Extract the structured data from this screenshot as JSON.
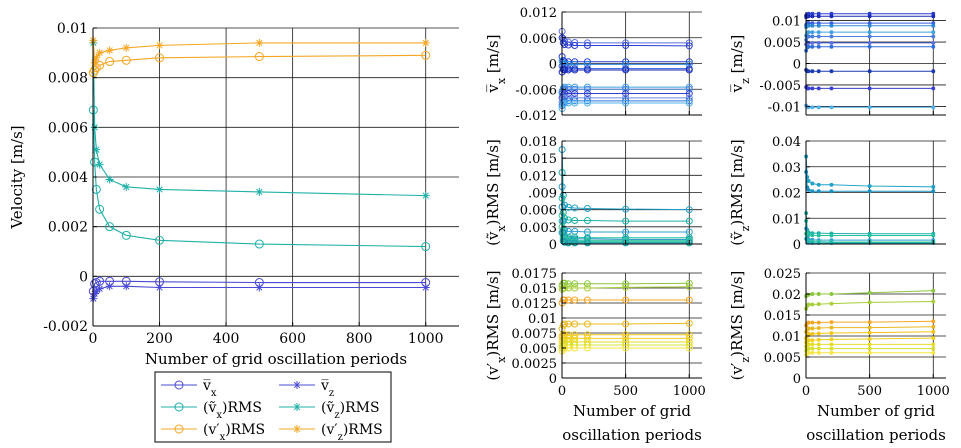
{
  "chart_data": [
    {
      "id": "main",
      "type": "line",
      "ylabel": "Velocity [m/s]",
      "xlabel": "Number of grid oscillation periods",
      "xlim": [
        0,
        1100
      ],
      "ylim": [
        -0.002,
        0.01
      ],
      "xticks": [
        0,
        200,
        400,
        600,
        800,
        1000
      ],
      "xtick_labels": [
        "0",
        "200",
        "400",
        "600",
        "800",
        "1000"
      ],
      "yticks": [
        -0.002,
        0,
        0.002,
        0.004,
        0.006,
        0.008,
        0.01
      ],
      "ytick_labels": [
        "-0.002",
        "0",
        "0.002",
        "0.004",
        "0.006",
        "0.008",
        "0.01"
      ],
      "grid": true,
      "legend_position": "below",
      "legend_columns": 2,
      "series": [
        {
          "name": "v̅ₓ",
          "name_main": "v̅",
          "name_sub": "x",
          "name_tail": "",
          "color": "#4a4ad6",
          "marker": "circle",
          "x": [
            1,
            5,
            10,
            20,
            50,
            100,
            200,
            500,
            1000
          ],
          "y": [
            -0.0006,
            -0.0003,
            -0.00025,
            -0.0002,
            -0.0002,
            -0.0002,
            -0.00022,
            -0.00025,
            -0.00025
          ]
        },
        {
          "name": "v̅_z",
          "name_main": "v̅",
          "name_sub": "z",
          "name_tail": "",
          "color": "#4a4ad6",
          "marker": "star",
          "x": [
            1,
            5,
            10,
            20,
            50,
            100,
            200,
            500,
            1000
          ],
          "y": [
            -0.0009,
            -0.0007,
            -0.0006,
            -0.0005,
            -0.0004,
            -0.0004,
            -0.00045,
            -0.00045,
            -0.00045
          ]
        },
        {
          "name": "(ṽₓ)RMS",
          "name_main": "(ṽ",
          "name_sub": "x",
          "name_tail": ")RMS",
          "color": "#1fb0a8",
          "marker": "circle",
          "x": [
            1,
            5,
            10,
            20,
            50,
            100,
            200,
            500,
            1000
          ],
          "y": [
            0.0067,
            0.0046,
            0.0035,
            0.0027,
            0.002,
            0.00165,
            0.00145,
            0.0013,
            0.0012
          ]
        },
        {
          "name": "(ṽ_z)RMS",
          "name_main": "(ṽ",
          "name_sub": "z",
          "name_tail": ")RMS",
          "color": "#1fb0a8",
          "marker": "star",
          "x": [
            1,
            5,
            10,
            20,
            50,
            100,
            200,
            500,
            1000
          ],
          "y": [
            0.0094,
            0.006,
            0.0051,
            0.0045,
            0.0039,
            0.0036,
            0.0035,
            0.0034,
            0.00325
          ]
        },
        {
          "name": "(v′ₓ)RMS",
          "name_main": "(v′",
          "name_sub": "x",
          "name_tail": ")RMS",
          "color": "#f5a623",
          "marker": "circle",
          "x": [
            1,
            5,
            10,
            20,
            50,
            100,
            200,
            500,
            1000
          ],
          "y": [
            0.0082,
            0.0083,
            0.0084,
            0.0085,
            0.00865,
            0.0087,
            0.0088,
            0.00885,
            0.0089
          ]
        },
        {
          "name": "(v′_z)RMS",
          "name_main": "(v′",
          "name_sub": "z",
          "name_tail": ")RMS",
          "color": "#f5a623",
          "marker": "star",
          "x": [
            1,
            5,
            10,
            20,
            50,
            100,
            200,
            500,
            1000
          ],
          "y": [
            0.0095,
            0.0086,
            0.0088,
            0.009,
            0.0091,
            0.0092,
            0.0093,
            0.0094,
            0.0094
          ]
        }
      ]
    },
    {
      "id": "vx_mean",
      "type": "line",
      "ylabel_main": "v̅",
      "ylabel_sub": "x",
      "ylabel_tail": " [m/s]",
      "xlim": [
        0,
        1100
      ],
      "ylim": [
        -0.012,
        0.012
      ],
      "yticks": [
        -0.012,
        -0.006,
        0,
        0.006,
        0.012
      ],
      "ytick_labels": [
        "-0.012",
        "-0.006",
        "0",
        "0.006",
        "0.012"
      ],
      "xticks": [
        0,
        500,
        1000
      ],
      "xtick_labels": [],
      "grid": true,
      "marker": "circle",
      "colors": [
        "#5b6fe0",
        "#2b3fd2",
        "#2b3fd2",
        "#2d8ad8",
        "#3a5fdc",
        "#1a2bb8",
        "#3fa0e0",
        "#4a7fe0",
        "#3a3fd0",
        "#6a8ae6",
        "#2f6fdc",
        "#4fb0ea"
      ],
      "x": [
        1,
        10,
        20,
        50,
        100,
        200,
        500,
        1000
      ],
      "series_y": [
        [
          0.0075,
          0.0058,
          0.0052,
          0.005,
          0.0049,
          0.0048,
          0.0048,
          0.0048
        ],
        [
          0.006,
          0.0048,
          0.0044,
          0.0043,
          0.0042,
          0.0042,
          0.0042,
          0.0041
        ],
        [
          0.0016,
          0.0007,
          0.0004,
          0.0004,
          0.0004,
          0.0004,
          0.0004,
          0.0004
        ],
        [
          0.0006,
          0.0,
          -0.0002,
          -0.0002,
          -0.0002,
          -0.0002,
          -0.0002,
          -0.0002
        ],
        [
          -0.0006,
          -0.001,
          -0.0012,
          -0.0012,
          -0.0012,
          -0.0012,
          -0.0012,
          -0.0012
        ],
        [
          -0.002,
          -0.0014,
          -0.0015,
          -0.0015,
          -0.0015,
          -0.0015,
          -0.0015,
          -0.0015
        ],
        [
          -0.007,
          -0.0058,
          -0.0055,
          -0.0055,
          -0.0055,
          -0.0055,
          -0.0055,
          -0.0055
        ],
        [
          -0.0065,
          -0.0062,
          -0.006,
          -0.006,
          -0.006,
          -0.006,
          -0.006,
          -0.006
        ],
        [
          -0.008,
          -0.0073,
          -0.007,
          -0.007,
          -0.007,
          -0.007,
          -0.007,
          -0.007
        ],
        [
          -0.009,
          -0.0082,
          -0.008,
          -0.008,
          -0.008,
          -0.008,
          -0.008,
          -0.008
        ],
        [
          -0.0098,
          -0.009,
          -0.0088,
          -0.0087,
          -0.0087,
          -0.0087,
          -0.0087,
          -0.0087
        ],
        [
          -0.0105,
          -0.0095,
          -0.0092,
          -0.0092,
          -0.0092,
          -0.0092,
          -0.0092,
          -0.0092
        ]
      ]
    },
    {
      "id": "vz_mean",
      "type": "line",
      "ylabel_main": "v̅",
      "ylabel_sub": "z",
      "ylabel_tail": " [m/s]",
      "xlim": [
        0,
        1100
      ],
      "ylim": [
        -0.012,
        0.012
      ],
      "yticks": [
        -0.01,
        -0.005,
        0,
        0.005,
        0.01
      ],
      "ytick_labels": [
        "-0.01",
        "-0.005",
        "0",
        "0.005",
        "0.01"
      ],
      "xticks": [
        0,
        500,
        1000
      ],
      "xtick_labels": [],
      "grid": true,
      "marker": "dot",
      "colors": [
        "#2b3fd2",
        "#1a2bb8",
        "#3a5fdc",
        "#2d8ad8",
        "#3fa0e0",
        "#4a7fe0",
        "#5b6fe0",
        "#2f6fdc",
        "#1a3ab0",
        "#3a3fd0",
        "#4fb0ea"
      ],
      "x": [
        1,
        10,
        20,
        50,
        100,
        200,
        500,
        1000
      ],
      "series_y": [
        [
          0.0108,
          0.0114,
          0.0116,
          0.0116,
          0.0116,
          0.0116,
          0.0116,
          0.0116
        ],
        [
          0.0112,
          0.011,
          0.011,
          0.011,
          0.011,
          0.011,
          0.011,
          0.011
        ],
        [
          0.009,
          0.0094,
          0.0094,
          0.0094,
          0.0094,
          0.0094,
          0.0094,
          0.0094
        ],
        [
          0.0085,
          0.0088,
          0.0088,
          0.0088,
          0.0088,
          0.0088,
          0.0088,
          0.0088
        ],
        [
          0.0065,
          0.0072,
          0.0073,
          0.0073,
          0.0073,
          0.0073,
          0.0073,
          0.0073
        ],
        [
          0.0055,
          0.0062,
          0.0063,
          0.0063,
          0.0063,
          0.0063,
          0.0063,
          0.0063
        ],
        [
          0.0045,
          0.0048,
          0.0048,
          0.0048,
          0.0048,
          0.0048,
          0.0048,
          0.0048
        ],
        [
          0.003,
          0.0038,
          0.0039,
          0.0039,
          0.0039,
          0.0039,
          0.0039,
          0.0039
        ],
        [
          -0.0015,
          -0.0018,
          -0.0018,
          -0.0018,
          -0.0018,
          -0.0018,
          -0.0018,
          -0.0018
        ],
        [
          -0.0055,
          -0.0058,
          -0.0058,
          -0.0058,
          -0.0058,
          -0.0058,
          -0.0058,
          -0.0058
        ],
        [
          -0.0098,
          -0.0102,
          -0.0102,
          -0.0102,
          -0.0102,
          -0.0102,
          -0.0102,
          -0.0102
        ]
      ]
    },
    {
      "id": "vx_rms_tilde",
      "type": "line",
      "ylabel_main": "(ṽ",
      "ylabel_sub": "x",
      "ylabel_tail": ")RMS [m/s]",
      "xlim": [
        0,
        1100
      ],
      "ylim": [
        0,
        0.018
      ],
      "yticks": [
        0,
        0.003,
        0.006,
        0.009,
        0.012,
        0.015,
        0.018
      ],
      "ytick_labels": [
        "0",
        "0.003",
        "0.006",
        ".009",
        "0.012",
        "0.015",
        "0.018"
      ],
      "xticks": [
        0,
        500,
        1000
      ],
      "xtick_labels": [],
      "grid": true,
      "marker": "circle",
      "colors": [
        "#1ea0c8",
        "#1fb0a8",
        "#2a9fd0",
        "#24c0a0",
        "#1890c0",
        "#30c898",
        "#22b0b8",
        "#3ad090",
        "#1c98b0"
      ],
      "x": [
        1,
        10,
        20,
        50,
        100,
        200,
        500,
        1000
      ],
      "series_y": [
        [
          0.0165,
          0.0085,
          0.0068,
          0.0064,
          0.0063,
          0.0062,
          0.0061,
          0.006
        ],
        [
          0.0125,
          0.0055,
          0.0045,
          0.0042,
          0.0041,
          0.0041,
          0.004,
          0.004
        ],
        [
          0.01,
          0.004,
          0.0024,
          0.0022,
          0.0022,
          0.0021,
          0.0021,
          0.0021
        ],
        [
          0.008,
          0.0025,
          0.0014,
          0.0012,
          0.0012,
          0.0011,
          0.0011,
          0.0011
        ],
        [
          0.0065,
          0.002,
          0.0011,
          0.0009,
          0.0009,
          0.0009,
          0.0008,
          0.0008
        ],
        [
          0.005,
          0.0015,
          0.0008,
          0.0007,
          0.0006,
          0.0006,
          0.0006,
          0.0006
        ],
        [
          0.004,
          0.0011,
          0.0006,
          0.0005,
          0.0005,
          0.0004,
          0.0004,
          0.0004
        ],
        [
          0.003,
          0.0008,
          0.0004,
          0.0003,
          0.0003,
          0.0003,
          0.0003,
          0.0003
        ],
        [
          0.002,
          0.0005,
          0.0003,
          0.0002,
          0.0002,
          0.0002,
          0.0002,
          0.0002
        ]
      ]
    },
    {
      "id": "vz_rms_tilde",
      "type": "line",
      "ylabel_main": "(ṽ",
      "ylabel_sub": "z",
      "ylabel_tail": ")RMS [m/s]",
      "xlim": [
        0,
        1100
      ],
      "ylim": [
        0,
        0.04
      ],
      "yticks": [
        0,
        0.01,
        0.02,
        0.03,
        0.04
      ],
      "ytick_labels": [
        "0",
        "0.01",
        "0.02",
        "0.03",
        "0.04"
      ],
      "xticks": [
        0,
        500,
        1000
      ],
      "xtick_labels": [],
      "grid": true,
      "marker": "dot",
      "colors": [
        "#1ea0c8",
        "#1890c0",
        "#1fb0a8",
        "#24c0a0",
        "#2a9fd0",
        "#30c898",
        "#22b0b8"
      ],
      "x": [
        1,
        10,
        20,
        50,
        100,
        200,
        500,
        1000
      ],
      "series_y": [
        [
          0.034,
          0.026,
          0.0245,
          0.0235,
          0.023,
          0.023,
          0.0225,
          0.0222
        ],
        [
          0.028,
          0.022,
          0.021,
          0.0205,
          0.0205,
          0.0205,
          0.0205,
          0.0205
        ],
        [
          0.012,
          0.0055,
          0.0045,
          0.0042,
          0.0042,
          0.0041,
          0.004,
          0.004
        ],
        [
          0.009,
          0.0045,
          0.0035,
          0.0034,
          0.0033,
          0.0033,
          0.0033,
          0.0033
        ],
        [
          0.006,
          0.0025,
          0.0018,
          0.0016,
          0.0015,
          0.0015,
          0.0015,
          0.0015
        ],
        [
          0.004,
          0.0015,
          0.001,
          0.0009,
          0.0009,
          0.0008,
          0.0008,
          0.0008
        ],
        [
          0.002,
          0.0008,
          0.0005,
          0.0004,
          0.0004,
          0.0004,
          0.0004,
          0.0004
        ]
      ]
    },
    {
      "id": "vx_rms_prime",
      "type": "line",
      "ylabel_main": "(v′",
      "ylabel_sub": "x",
      "ylabel_tail": ")RMS [m/s]",
      "xlabel_lines": [
        "Number of grid",
        "oscillation periods"
      ],
      "xlim": [
        0,
        1100
      ],
      "ylim": [
        0,
        0.0175
      ],
      "yticks": [
        0,
        0.0025,
        0.005,
        0.0075,
        0.01,
        0.0125,
        0.015,
        0.0175
      ],
      "ytick_labels": [
        "0",
        "0.0025",
        "0.005",
        "0.0075",
        "0.01",
        "0.0125",
        "0.015",
        "0.0175"
      ],
      "xticks": [
        0,
        500,
        1000
      ],
      "xtick_labels": [
        "0",
        "500",
        "1000"
      ],
      "grid": true,
      "marker": "circle",
      "colors": [
        "#8cc63f",
        "#a8cf3a",
        "#f5a623",
        "#e8b820",
        "#f2c418",
        "#f0d020",
        "#e6dc28",
        "#d8e030",
        "#f5e642"
      ],
      "x": [
        1,
        10,
        20,
        50,
        100,
        200,
        500,
        1000
      ],
      "series_y": [
        [
          0.0155,
          0.0158,
          0.0158,
          0.0157,
          0.0157,
          0.0157,
          0.0157,
          0.0158
        ],
        [
          0.0148,
          0.015,
          0.015,
          0.015,
          0.015,
          0.015,
          0.0151,
          0.0152
        ],
        [
          0.0125,
          0.013,
          0.013,
          0.013,
          0.013,
          0.013,
          0.013,
          0.013
        ],
        [
          0.0082,
          0.0088,
          0.009,
          0.009,
          0.009,
          0.009,
          0.009,
          0.0091
        ],
        [
          0.007,
          0.0072,
          0.0072,
          0.0072,
          0.0072,
          0.0072,
          0.0072,
          0.0072
        ],
        [
          0.0062,
          0.0065,
          0.0066,
          0.0066,
          0.0066,
          0.0066,
          0.0066,
          0.0066
        ],
        [
          0.0055,
          0.0058,
          0.006,
          0.006,
          0.006,
          0.006,
          0.006,
          0.006
        ],
        [
          0.005,
          0.0053,
          0.0055,
          0.0055,
          0.0055,
          0.0055,
          0.0055,
          0.0055
        ],
        [
          0.0045,
          0.0048,
          0.005,
          0.005,
          0.005,
          0.005,
          0.005,
          0.005
        ]
      ]
    },
    {
      "id": "vz_rms_prime",
      "type": "line",
      "ylabel_main": "(v′",
      "ylabel_sub": "z",
      "ylabel_tail": ")RMS [m/s]",
      "xlabel_lines": [
        "Number of grid",
        "oscillation periods"
      ],
      "xlim": [
        0,
        1100
      ],
      "ylim": [
        0,
        0.025
      ],
      "yticks": [
        0,
        0.005,
        0.01,
        0.015,
        0.02,
        0.025
      ],
      "ytick_labels": [
        "0",
        "0.005",
        "0.01",
        "0.015",
        "0.02",
        "0.025"
      ],
      "xticks": [
        0,
        500,
        1000
      ],
      "xtick_labels": [
        "0",
        "500",
        "1000"
      ],
      "grid": true,
      "marker": "dot",
      "colors": [
        "#8cc63f",
        "#a8cf3a",
        "#f5a623",
        "#e8b820",
        "#f2c418",
        "#f0d020",
        "#e6dc28",
        "#d8e030",
        "#f5e642"
      ],
      "x": [
        1,
        10,
        20,
        50,
        100,
        200,
        500,
        1000
      ],
      "series_y": [
        [
          0.0195,
          0.0198,
          0.0198,
          0.02,
          0.02,
          0.02,
          0.0203,
          0.0208
        ],
        [
          0.0165,
          0.0172,
          0.0175,
          0.0175,
          0.0176,
          0.0177,
          0.018,
          0.0182
        ],
        [
          0.0125,
          0.013,
          0.0132,
          0.0132,
          0.0132,
          0.0133,
          0.0133,
          0.0135
        ],
        [
          0.011,
          0.0115,
          0.0118,
          0.0118,
          0.0119,
          0.012,
          0.012,
          0.0122
        ],
        [
          0.0095,
          0.01,
          0.0105,
          0.0105,
          0.0106,
          0.0107,
          0.0108,
          0.011
        ],
        [
          0.0085,
          0.0088,
          0.009,
          0.009,
          0.0091,
          0.0092,
          0.0093,
          0.0095
        ],
        [
          0.0075,
          0.0078,
          0.008,
          0.008,
          0.008,
          0.008,
          0.008,
          0.008
        ],
        [
          0.0065,
          0.0068,
          0.007,
          0.007,
          0.007,
          0.007,
          0.007,
          0.007
        ],
        [
          0.0055,
          0.0058,
          0.006,
          0.006,
          0.006,
          0.006,
          0.006,
          0.006
        ]
      ]
    }
  ]
}
